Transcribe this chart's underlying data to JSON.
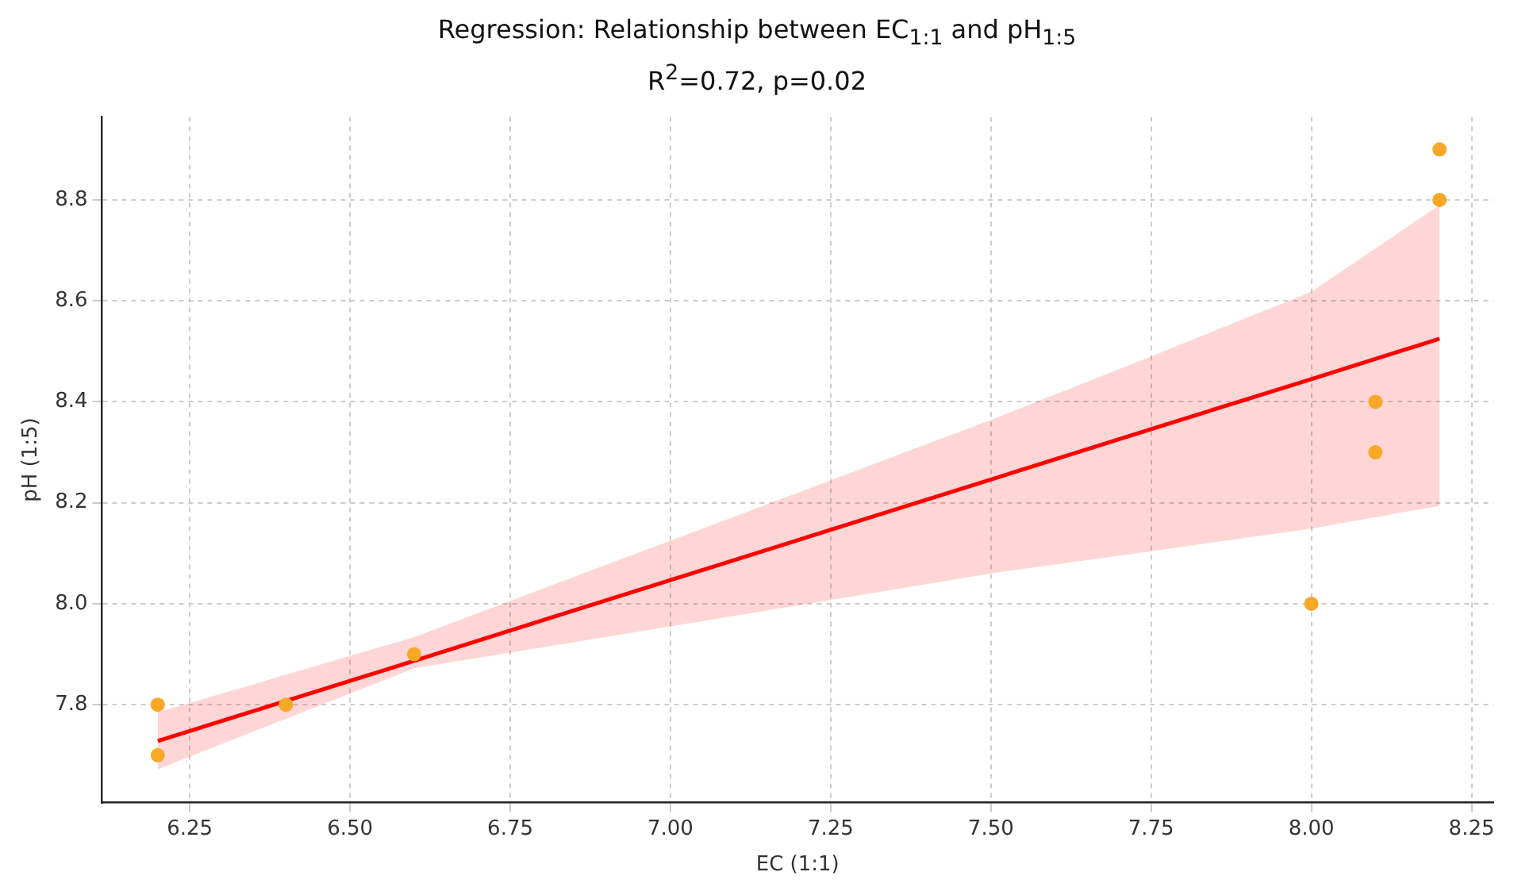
{
  "chart_data": {
    "type": "scatter",
    "title": "Regression: Relationship between EC$_{1:1}$ and pH$_{1:5}$",
    "subtitle": "R$^{2}$=0.72, p=0.02",
    "xlabel": "EC (1:1)",
    "ylabel": "pH (1:5)",
    "series": [
      {
        "color": "#f7a826",
        "marker": "circle",
        "x": [
          6.2,
          6.2,
          6.4,
          6.6,
          8.0,
          8.1,
          8.1,
          8.2,
          8.2
        ],
        "values": [
          7.8,
          7.7,
          7.8,
          7.9,
          8.0,
          8.4,
          8.3,
          8.9,
          8.8
        ]
      },
      {
        "type": "line",
        "color": "#ff0000",
        "x": [
          6.2,
          6.6,
          7.0,
          7.5,
          7.75,
          8.0,
          8.2
        ],
        "values": [
          7.728,
          7.887,
          8.047,
          8.246,
          8.346,
          8.445,
          8.525
        ],
        "lower": [
          7.672,
          7.872,
          7.955,
          8.06,
          8.104,
          8.149,
          8.194
        ],
        "upper": [
          7.785,
          7.934,
          8.125,
          8.364,
          8.49,
          8.618,
          8.79
        ]
      }
    ],
    "xlim": [
      6.113,
      8.284
    ],
    "ylim": [
      7.606,
      8.964
    ],
    "xticks": [
      6.25,
      {
        "value": 6.5,
        "label": "6.50"
      },
      6.75,
      {
        "value": 7,
        "label": "7.00"
      },
      7.25,
      {
        "value": 7.5,
        "label": "7.50"
      },
      7.75,
      {
        "value": 8,
        "label": "8.00"
      },
      8.25
    ],
    "yticks": [
      7.8,
      {
        "value": 8,
        "label": "8.0"
      },
      8.2,
      8.4,
      8.6,
      8.8
    ],
    "grid": true,
    "legend": false,
    "line_style": "solid"
  }
}
